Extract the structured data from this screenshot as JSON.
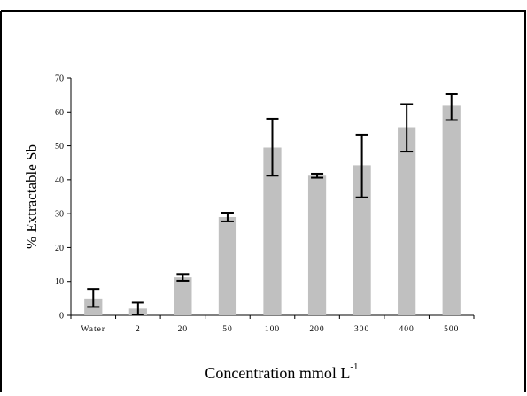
{
  "chart_data": {
    "type": "bar",
    "categories": [
      "Water",
      "2",
      "20",
      "50",
      "100",
      "200",
      "300",
      "400",
      "500"
    ],
    "values": [
      5,
      2,
      11.2,
      29,
      49.5,
      41.2,
      44.3,
      55.5,
      61.8
    ],
    "error_low": [
      2.5,
      1.8,
      1.0,
      1.3,
      8.3,
      0.6,
      9.5,
      7.2,
      4.2
    ],
    "error_high": [
      2.8,
      1.8,
      1.0,
      1.3,
      8.5,
      0.6,
      9.0,
      6.8,
      3.5
    ],
    "ylabel": "% Extractable Sb",
    "xlabel": "Concentration mmol L",
    "xlabel_sup": "-1",
    "ylim": [
      0,
      70
    ],
    "yticks": [
      "0",
      "10",
      "20",
      "30",
      "40",
      "50",
      "60",
      "70"
    ],
    "bar_color": "#c0c0c0",
    "error_color": "#000000",
    "grid": false,
    "legend": "none"
  }
}
